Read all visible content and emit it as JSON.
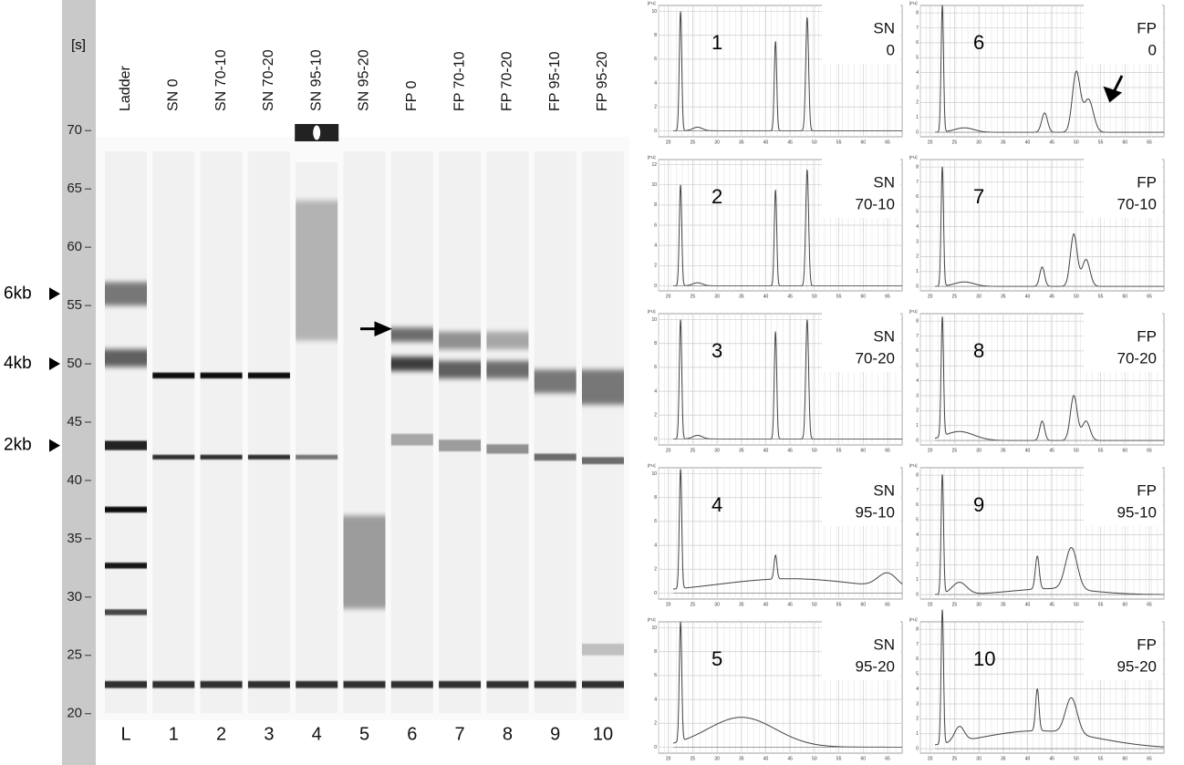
{
  "gel": {
    "unit": "[s]",
    "ylim": [
      15.6,
      81.2
    ],
    "yticks": [
      20,
      25,
      30,
      35,
      40,
      45,
      50,
      55,
      60,
      65,
      70
    ],
    "markers": [
      {
        "label": "6kb",
        "value": 56
      },
      {
        "label": "4kb",
        "value": 50
      },
      {
        "label": "2kb",
        "value": 43
      }
    ],
    "arrow_value": 53,
    "lanes": [
      {
        "label": "Ladder",
        "number": "L",
        "bands": [
          [
            56,
            0.5,
            2
          ],
          [
            50.5,
            0.6,
            1.5
          ],
          [
            43,
            0.85,
            0.8
          ],
          [
            37.5,
            0.95,
            0.5
          ],
          [
            32.7,
            0.9,
            0.5
          ],
          [
            28.7,
            0.7,
            0.5
          ],
          [
            22.5,
            0.8,
            0.6
          ]
        ]
      },
      {
        "label": "SN 0",
        "number": "1",
        "bands": [
          [
            49,
            0.95,
            0.5
          ],
          [
            42,
            0.8,
            0.4
          ],
          [
            22.5,
            0.8,
            0.6
          ]
        ]
      },
      {
        "label": "SN 70-10",
        "number": "2",
        "bands": [
          [
            49,
            0.95,
            0.5
          ],
          [
            42,
            0.8,
            0.4
          ],
          [
            22.5,
            0.8,
            0.6
          ]
        ]
      },
      {
        "label": "SN 70-20",
        "number": "3",
        "bands": [
          [
            49,
            0.95,
            0.5
          ],
          [
            42,
            0.8,
            0.4
          ],
          [
            22.5,
            0.8,
            0.6
          ]
        ]
      },
      {
        "label": "SN 95-10",
        "number": "4",
        "bands": [
          [
            58,
            0.25,
            12
          ],
          [
            42,
            0.5,
            0.4
          ],
          [
            22.5,
            0.8,
            0.6
          ]
        ]
      },
      {
        "label": "SN 95-20",
        "number": "5",
        "bands": [
          [
            33,
            0.35,
            8
          ],
          [
            22.5,
            0.8,
            0.6
          ]
        ]
      },
      {
        "label": "FP 0",
        "number": "6",
        "bands": [
          [
            52.5,
            0.55,
            1.2
          ],
          [
            50,
            0.75,
            1.2
          ],
          [
            43.5,
            0.3,
            1
          ],
          [
            22.5,
            0.8,
            0.6
          ]
        ]
      },
      {
        "label": "FP 70-10",
        "number": "7",
        "bands": [
          [
            52,
            0.4,
            1.5
          ],
          [
            49.5,
            0.6,
            1.5
          ],
          [
            43,
            0.35,
            1
          ],
          [
            22.5,
            0.8,
            0.6
          ]
        ]
      },
      {
        "label": "FP 70-20",
        "number": "8",
        "bands": [
          [
            52,
            0.3,
            1.5
          ],
          [
            49.5,
            0.55,
            1.5
          ],
          [
            42.7,
            0.4,
            0.8
          ],
          [
            22.5,
            0.8,
            0.6
          ]
        ]
      },
      {
        "label": "FP 95-10",
        "number": "9",
        "bands": [
          [
            48.5,
            0.5,
            2
          ],
          [
            42,
            0.55,
            0.6
          ],
          [
            22.5,
            0.8,
            0.6
          ]
        ]
      },
      {
        "label": "FP 95-20",
        "number": "10",
        "bands": [
          [
            48,
            0.5,
            3
          ],
          [
            41.7,
            0.55,
            0.6
          ],
          [
            25.5,
            0.2,
            1
          ],
          [
            22.5,
            0.8,
            0.6
          ]
        ]
      }
    ]
  },
  "traces": {
    "unit": "[FU]",
    "xlim": [
      18,
      68
    ],
    "xticks": [
      20,
      25,
      30,
      35,
      40,
      45,
      50,
      55,
      60,
      65
    ],
    "panels": [
      {
        "number": "1",
        "label": [
          "SN",
          "0"
        ],
        "ylim": [
          -0.5,
          10.5
        ],
        "yticks": [
          0,
          2,
          4,
          6,
          8,
          10
        ],
        "peaks": [
          [
            22.5,
            10,
            0.25
          ],
          [
            26,
            0.3,
            1
          ],
          [
            42,
            7.5,
            0.25
          ],
          [
            48.5,
            9.5,
            0.3
          ]
        ]
      },
      {
        "number": "2",
        "label": [
          "SN",
          "70-10"
        ],
        "ylim": [
          -0.5,
          12.5
        ],
        "yticks": [
          0,
          2,
          4,
          6,
          8,
          10,
          12
        ],
        "peaks": [
          [
            22.5,
            10,
            0.25
          ],
          [
            26,
            0.3,
            1
          ],
          [
            42,
            9.5,
            0.25
          ],
          [
            48.5,
            11.5,
            0.3
          ]
        ]
      },
      {
        "number": "3",
        "label": [
          "SN",
          "70-20"
        ],
        "ylim": [
          -0.5,
          10.5
        ],
        "yticks": [
          0,
          2,
          4,
          6,
          8,
          10
        ],
        "peaks": [
          [
            22.5,
            10,
            0.25
          ],
          [
            26,
            0.3,
            1
          ],
          [
            42,
            9,
            0.25
          ],
          [
            48.5,
            10,
            0.3
          ]
        ]
      },
      {
        "number": "4",
        "label": [
          "SN",
          "95-10"
        ],
        "ylim": [
          -0.5,
          10.5
        ],
        "yticks": [
          0,
          2,
          4,
          6,
          8,
          10
        ],
        "peaks": [
          [
            22.5,
            10,
            0.25
          ],
          [
            45,
            1.2,
            15
          ],
          [
            42,
            2,
            0.3
          ],
          [
            65,
            1.2,
            2
          ]
        ]
      },
      {
        "number": "5",
        "label": [
          "SN",
          "95-20"
        ],
        "ylim": [
          -0.5,
          10.5
        ],
        "yticks": [
          0,
          2,
          4,
          6,
          8,
          10
        ],
        "peaks": [
          [
            22.5,
            10,
            0.25
          ],
          [
            35,
            2.5,
            7
          ]
        ]
      },
      {
        "number": "6",
        "label": [
          "FP",
          "0"
        ],
        "ylim": [
          -0.3,
          8.5
        ],
        "yticks": [
          0,
          1,
          2,
          3,
          4,
          5,
          6,
          7,
          8
        ],
        "peaks": [
          [
            22.5,
            8.5,
            0.25
          ],
          [
            27,
            0.3,
            2
          ],
          [
            43.5,
            1.3,
            0.6
          ],
          [
            50,
            4,
            0.8
          ],
          [
            52.5,
            2.2,
            1
          ]
        ]
      },
      {
        "number": "7",
        "label": [
          "FP",
          "70-10"
        ],
        "ylim": [
          -0.3,
          8.5
        ],
        "yticks": [
          0,
          1,
          2,
          3,
          4,
          5,
          6,
          7,
          8
        ],
        "peaks": [
          [
            22.5,
            8,
            0.25
          ],
          [
            27,
            0.3,
            2
          ],
          [
            43,
            1.3,
            0.5
          ],
          [
            49.5,
            3.5,
            0.7
          ],
          [
            52,
            1.8,
            0.8
          ]
        ]
      },
      {
        "number": "8",
        "label": [
          "FP",
          "70-20"
        ],
        "ylim": [
          -0.3,
          8.5
        ],
        "yticks": [
          0,
          1,
          2,
          3,
          4,
          5,
          6,
          7,
          8
        ],
        "peaks": [
          [
            22.5,
            8,
            0.25
          ],
          [
            26,
            0.6,
            3
          ],
          [
            43,
            1.3,
            0.5
          ],
          [
            49.5,
            3,
            0.7
          ],
          [
            52,
            1.3,
            0.8
          ]
        ]
      },
      {
        "number": "9",
        "label": [
          "FP",
          "95-10"
        ],
        "ylim": [
          -0.3,
          8.5
        ],
        "yticks": [
          0,
          1,
          2,
          3,
          4,
          5,
          6,
          7,
          8
        ],
        "peaks": [
          [
            22.5,
            8,
            0.25
          ],
          [
            26,
            0.8,
            1.5
          ],
          [
            45,
            0.4,
            8
          ],
          [
            42,
            2.2,
            0.4
          ],
          [
            49,
            2.8,
            1.2
          ]
        ]
      },
      {
        "number": "10",
        "label": [
          "FP",
          "95-20"
        ],
        "ylim": [
          -0.3,
          8.5
        ],
        "yticks": [
          0,
          1,
          2,
          3,
          4,
          5,
          6,
          7,
          8
        ],
        "peaks": [
          [
            22.5,
            9,
            0.25
          ],
          [
            26,
            1,
            1
          ],
          [
            42,
            1.2,
            12
          ],
          [
            42,
            2.8,
            0.35
          ],
          [
            49,
            2.4,
            1.2
          ]
        ]
      }
    ]
  }
}
